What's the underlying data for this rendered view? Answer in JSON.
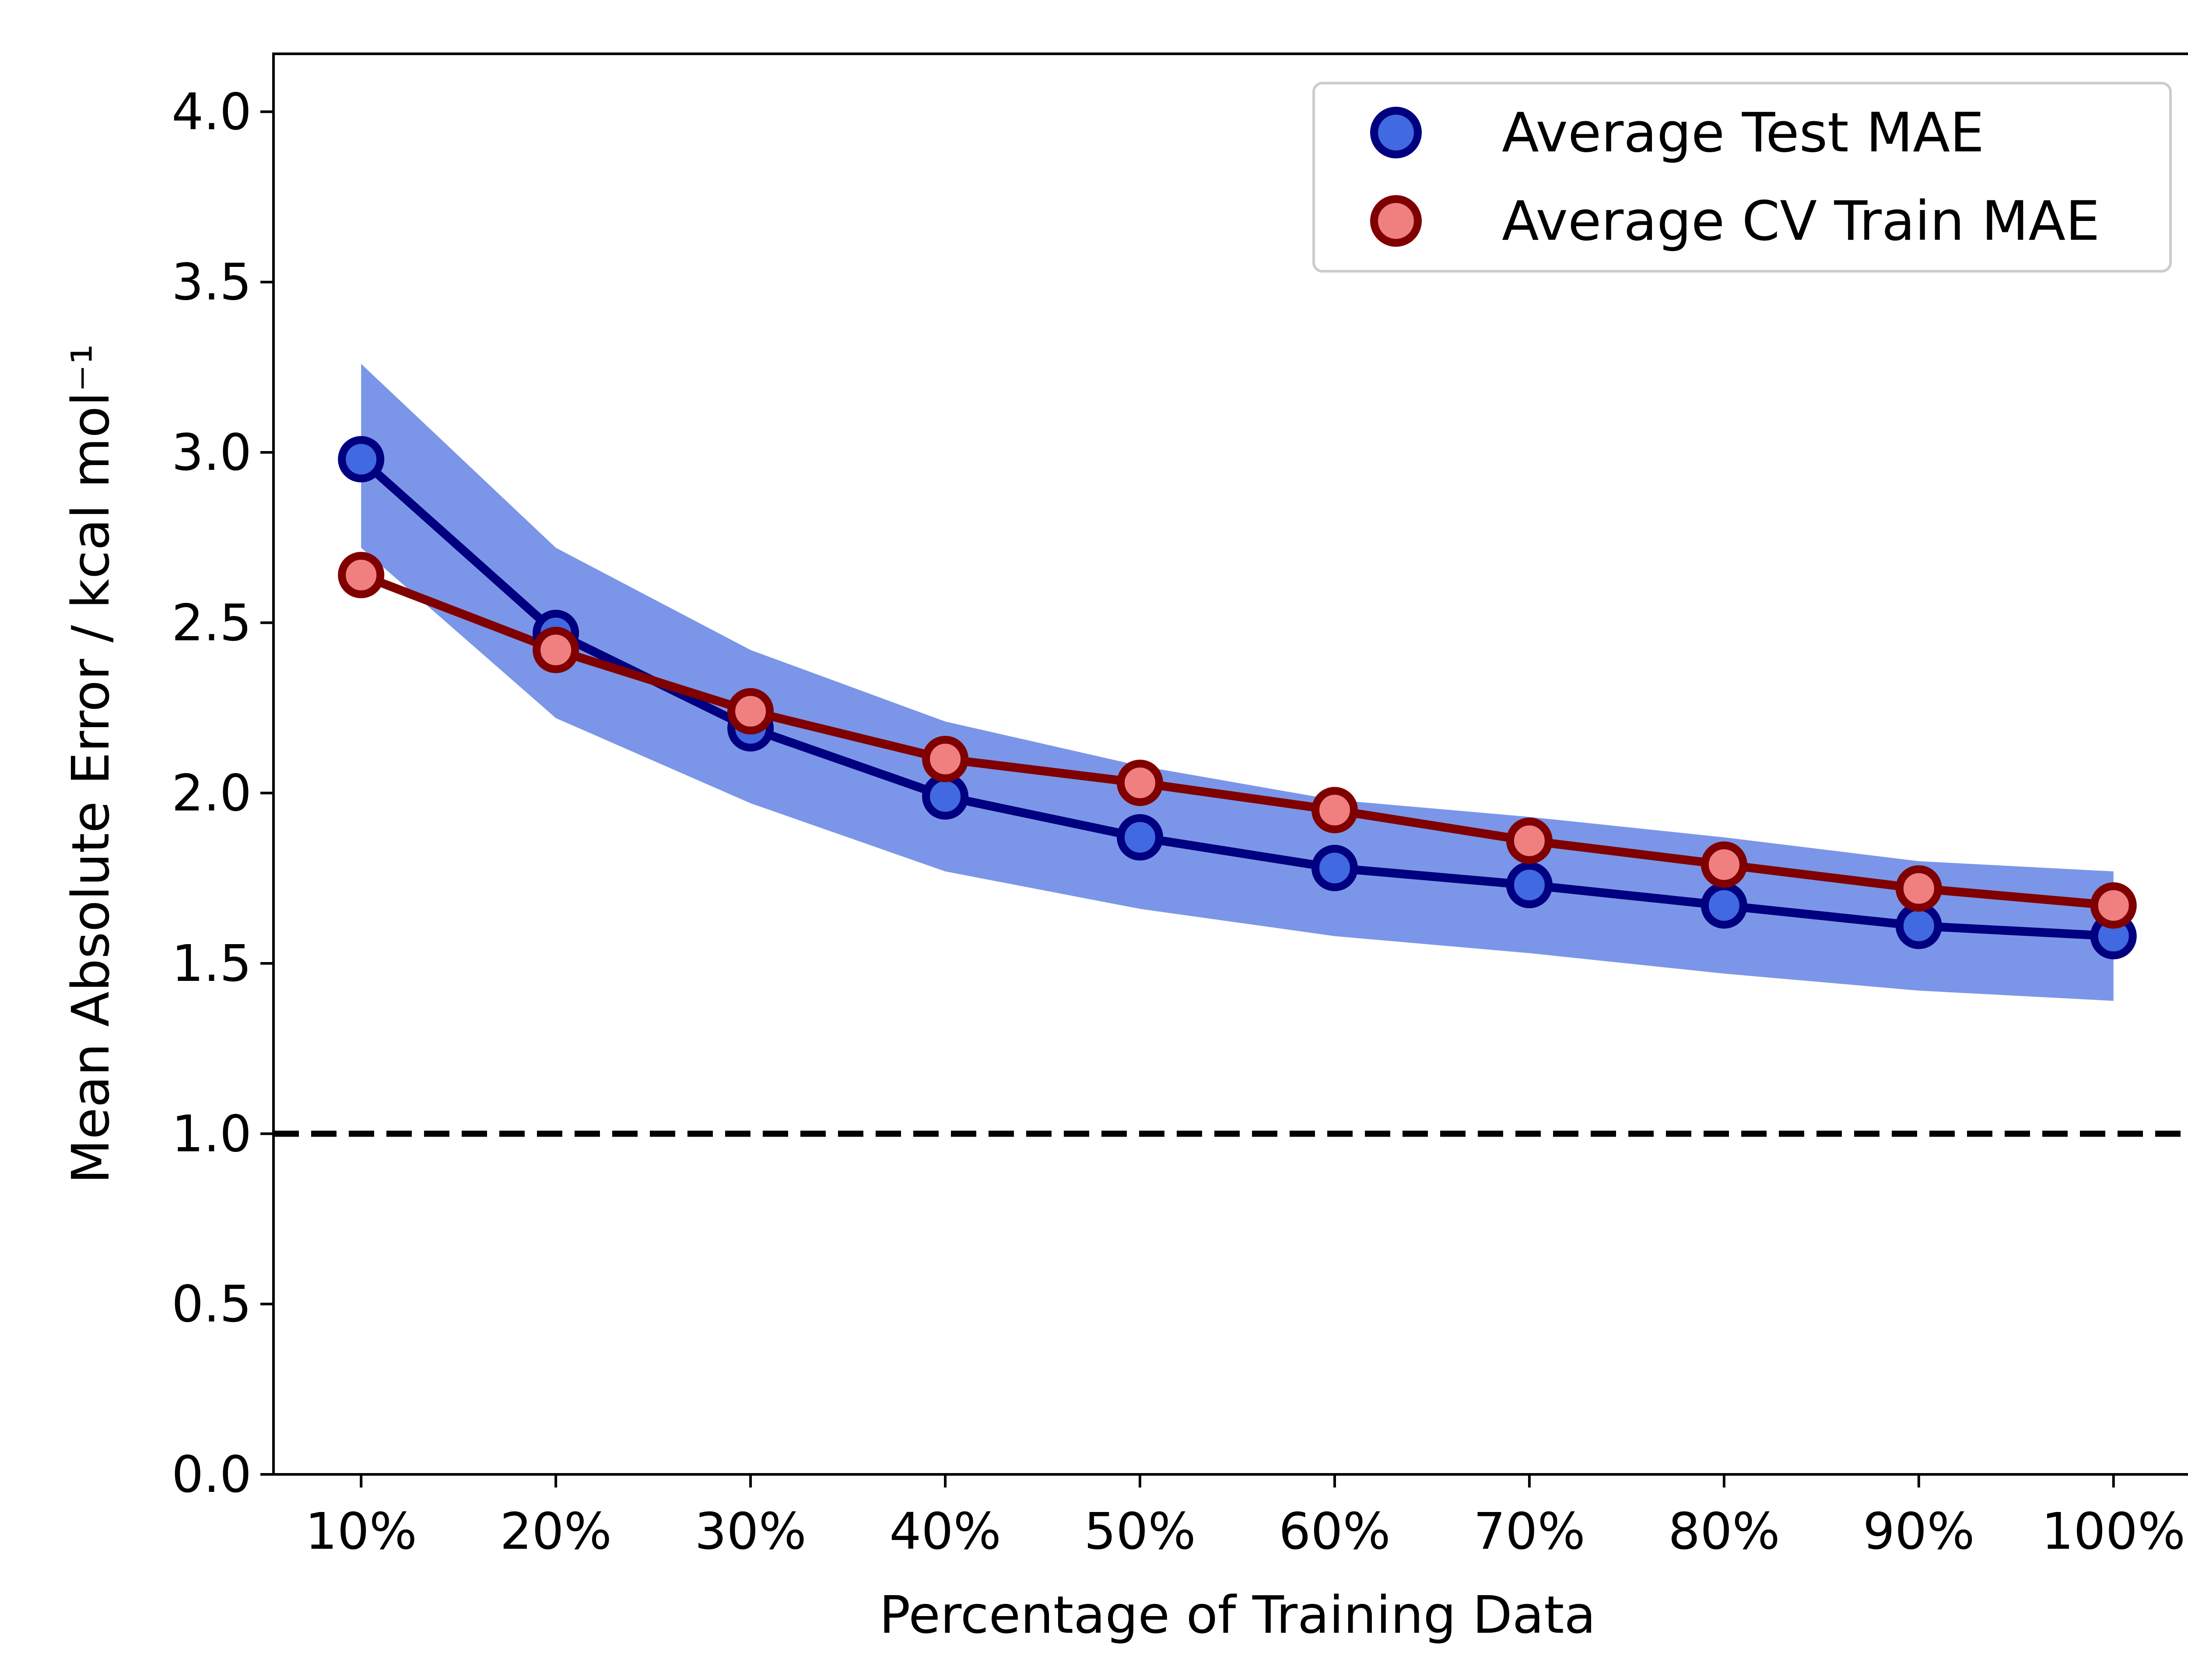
{
  "chart_data": {
    "type": "line",
    "xlabel": "Percentage of Training Data",
    "ylabel": "Mean Absolute Error / kcal mol⁻¹",
    "categories": [
      "10%",
      "20%",
      "30%",
      "40%",
      "50%",
      "60%",
      "70%",
      "80%",
      "90%",
      "100%"
    ],
    "x": [
      10,
      20,
      30,
      40,
      50,
      60,
      70,
      80,
      90,
      100
    ],
    "xlim": [
      5.5,
      104.5
    ],
    "ylim": [
      0.0,
      4.17
    ],
    "yticks": [
      "0.0",
      "0.5",
      "1.0",
      "1.5",
      "2.0",
      "2.5",
      "3.0",
      "3.5",
      "4.0"
    ],
    "ytick_values": [
      0.0,
      0.5,
      1.0,
      1.5,
      2.0,
      2.5,
      3.0,
      3.5,
      4.0
    ],
    "reference_line": {
      "y": 1.0,
      "style": "dashed",
      "color": "#000000"
    },
    "series": [
      {
        "name": "Average Test MAE",
        "values": [
          2.98,
          2.47,
          2.19,
          1.99,
          1.87,
          1.78,
          1.73,
          1.67,
          1.61,
          1.58
        ],
        "band_upper": [
          3.26,
          2.72,
          2.42,
          2.21,
          2.08,
          1.98,
          1.93,
          1.87,
          1.8,
          1.77
        ],
        "band_lower": [
          2.72,
          2.22,
          1.97,
          1.77,
          1.66,
          1.58,
          1.53,
          1.47,
          1.42,
          1.39
        ],
        "line_color": "#000080",
        "marker_face": "#4169e1",
        "band_color": "#7b96e8"
      },
      {
        "name": "Average CV Train MAE",
        "values": [
          2.64,
          2.42,
          2.24,
          2.1,
          2.03,
          1.95,
          1.86,
          1.79,
          1.72,
          1.67
        ],
        "line_color": "#800000",
        "marker_face": "#f08080"
      }
    ],
    "legend": {
      "position": "top-right"
    },
    "grid": false
  }
}
